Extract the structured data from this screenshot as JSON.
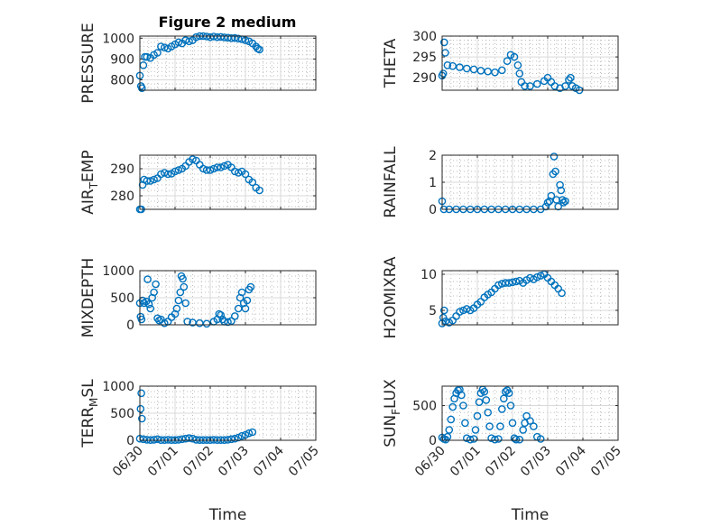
{
  "figure": {
    "title": "Figure 2 medium"
  },
  "chart_data": [
    {
      "type": "scatter",
      "name": "PRESSURE",
      "ylabel": "PRESSURE",
      "xlabel": "",
      "title": "Figure 2 medium",
      "ylim": [
        750,
        1010
      ],
      "yticks": [
        800,
        900,
        1000
      ],
      "ytick_labels": [
        "800",
        "900",
        "1000"
      ],
      "xlim": [
        0,
        5
      ],
      "xticks": [
        0,
        1,
        2,
        3,
        4,
        5
      ],
      "xtick_labels": [],
      "grid": true,
      "minor_grid": true,
      "points": [
        [
          0.0,
          820
        ],
        [
          0.03,
          770
        ],
        [
          0.06,
          760
        ],
        [
          0.1,
          870
        ],
        [
          0.14,
          910
        ],
        [
          0.2,
          910
        ],
        [
          0.3,
          905
        ],
        [
          0.4,
          920
        ],
        [
          0.5,
          930
        ],
        [
          0.6,
          960
        ],
        [
          0.7,
          955
        ],
        [
          0.8,
          950
        ],
        [
          0.9,
          960
        ],
        [
          1.0,
          970
        ],
        [
          1.1,
          980
        ],
        [
          1.2,
          975
        ],
        [
          1.3,
          990
        ],
        [
          1.4,
          985
        ],
        [
          1.5,
          990
        ],
        [
          1.6,
          1005
        ],
        [
          1.7,
          1010
        ],
        [
          1.8,
          1010
        ],
        [
          1.9,
          1008
        ],
        [
          2.0,
          1005
        ],
        [
          2.1,
          1008
        ],
        [
          2.2,
          1005
        ],
        [
          2.3,
          1006
        ],
        [
          2.4,
          1004
        ],
        [
          2.5,
          1002
        ],
        [
          2.6,
          1000
        ],
        [
          2.7,
          1001
        ],
        [
          2.8,
          998
        ],
        [
          2.9,
          995
        ],
        [
          3.0,
          990
        ],
        [
          3.1,
          985
        ],
        [
          3.2,
          975
        ],
        [
          3.3,
          960
        ],
        [
          3.35,
          950
        ],
        [
          3.4,
          945
        ]
      ]
    },
    {
      "type": "scatter",
      "name": "THETA",
      "ylabel": "THETA",
      "xlabel": "",
      "ylim": [
        287,
        300
      ],
      "yticks": [
        290,
        295,
        300
      ],
      "ytick_labels": [
        "290",
        "295",
        "300"
      ],
      "xlim": [
        0,
        5
      ],
      "xticks": [
        0,
        1,
        2,
        3,
        4,
        5
      ],
      "xtick_labels": [],
      "grid": true,
      "minor_grid": true,
      "points": [
        [
          0.0,
          290.5
        ],
        [
          0.03,
          291
        ],
        [
          0.06,
          298.5
        ],
        [
          0.09,
          296
        ],
        [
          0.15,
          293
        ],
        [
          0.3,
          292.8
        ],
        [
          0.5,
          292.5
        ],
        [
          0.7,
          292.2
        ],
        [
          0.9,
          292
        ],
        [
          1.1,
          291.7
        ],
        [
          1.3,
          291.5
        ],
        [
          1.5,
          291.3
        ],
        [
          1.7,
          291.8
        ],
        [
          1.85,
          294
        ],
        [
          1.95,
          295.5
        ],
        [
          2.05,
          295
        ],
        [
          2.15,
          293
        ],
        [
          2.2,
          291
        ],
        [
          2.25,
          289
        ],
        [
          2.35,
          288
        ],
        [
          2.5,
          288
        ],
        [
          2.7,
          288.5
        ],
        [
          2.9,
          289.2
        ],
        [
          3.0,
          290
        ],
        [
          3.1,
          289
        ],
        [
          3.2,
          288
        ],
        [
          3.35,
          287.5
        ],
        [
          3.5,
          288
        ],
        [
          3.6,
          289.5
        ],
        [
          3.65,
          290
        ],
        [
          3.7,
          288
        ],
        [
          3.8,
          287.5
        ],
        [
          3.9,
          287
        ]
      ]
    },
    {
      "type": "scatter",
      "name": "AIR_TEMP",
      "ylabel": "AIR_TEMP",
      "xlabel": "",
      "ylim": [
        275,
        295
      ],
      "yticks": [
        280,
        290
      ],
      "ytick_labels": [
        "280",
        "290"
      ],
      "xlim": [
        0,
        5
      ],
      "xticks": [
        0,
        1,
        2,
        3,
        4,
        5
      ],
      "xtick_labels": [],
      "grid": true,
      "minor_grid": true,
      "points": [
        [
          0.0,
          275
        ],
        [
          0.04,
          275
        ],
        [
          0.08,
          284
        ],
        [
          0.12,
          286
        ],
        [
          0.2,
          285.5
        ],
        [
          0.3,
          285.5
        ],
        [
          0.4,
          286
        ],
        [
          0.5,
          286.5
        ],
        [
          0.6,
          288
        ],
        [
          0.7,
          288.5
        ],
        [
          0.8,
          288
        ],
        [
          0.9,
          288.2
        ],
        [
          1.0,
          289
        ],
        [
          1.1,
          289.5
        ],
        [
          1.2,
          290
        ],
        [
          1.3,
          291
        ],
        [
          1.4,
          292.5
        ],
        [
          1.5,
          293.5
        ],
        [
          1.6,
          293
        ],
        [
          1.7,
          291.5
        ],
        [
          1.8,
          290
        ],
        [
          1.9,
          289.5
        ],
        [
          2.0,
          289.5
        ],
        [
          2.1,
          290
        ],
        [
          2.2,
          290.5
        ],
        [
          2.3,
          290.5
        ],
        [
          2.4,
          291
        ],
        [
          2.5,
          291.5
        ],
        [
          2.6,
          290.5
        ],
        [
          2.7,
          289
        ],
        [
          2.8,
          288.5
        ],
        [
          2.9,
          289
        ],
        [
          3.0,
          288
        ],
        [
          3.1,
          286
        ],
        [
          3.2,
          285
        ],
        [
          3.3,
          283
        ],
        [
          3.4,
          282
        ]
      ]
    },
    {
      "type": "scatter",
      "name": "RAINFALL",
      "ylabel": "RAINFALL",
      "xlabel": "",
      "ylim": [
        0,
        2
      ],
      "yticks": [
        0,
        1,
        2
      ],
      "ytick_labels": [
        "0",
        "1",
        "2"
      ],
      "xlim": [
        0,
        5
      ],
      "xticks": [
        0,
        1,
        2,
        3,
        4,
        5
      ],
      "xtick_labels": [],
      "grid": true,
      "minor_grid": true,
      "points": [
        [
          0.0,
          0.3
        ],
        [
          0.05,
          0
        ],
        [
          0.2,
          0
        ],
        [
          0.4,
          0
        ],
        [
          0.6,
          0
        ],
        [
          0.8,
          0
        ],
        [
          1.0,
          0
        ],
        [
          1.2,
          0
        ],
        [
          1.4,
          0
        ],
        [
          1.6,
          0
        ],
        [
          1.8,
          0
        ],
        [
          2.0,
          0
        ],
        [
          2.2,
          0
        ],
        [
          2.4,
          0
        ],
        [
          2.6,
          0
        ],
        [
          2.8,
          0
        ],
        [
          2.95,
          0.1
        ],
        [
          3.0,
          0.25
        ],
        [
          3.05,
          0.3
        ],
        [
          3.1,
          0.5
        ],
        [
          3.15,
          1.3
        ],
        [
          3.18,
          1.95
        ],
        [
          3.22,
          1.4
        ],
        [
          3.25,
          0.35
        ],
        [
          3.3,
          0.1
        ],
        [
          3.35,
          0.9
        ],
        [
          3.38,
          0.7
        ],
        [
          3.42,
          0.35
        ],
        [
          3.45,
          0.25
        ],
        [
          3.5,
          0.3
        ]
      ]
    },
    {
      "type": "scatter",
      "name": "MIXDEPTH",
      "ylabel": "MIXDEPTH",
      "xlabel": "",
      "ylim": [
        0,
        1000
      ],
      "yticks": [
        0,
        500,
        1000
      ],
      "ytick_labels": [
        "0",
        "500",
        "1000"
      ],
      "xlim": [
        0,
        5
      ],
      "xticks": [
        0,
        1,
        2,
        3,
        4,
        5
      ],
      "xtick_labels": [],
      "grid": true,
      "minor_grid": true,
      "points": [
        [
          0.0,
          400
        ],
        [
          0.02,
          150
        ],
        [
          0.05,
          100
        ],
        [
          0.08,
          450
        ],
        [
          0.12,
          400
        ],
        [
          0.18,
          430
        ],
        [
          0.22,
          840
        ],
        [
          0.26,
          380
        ],
        [
          0.3,
          300
        ],
        [
          0.35,
          500
        ],
        [
          0.4,
          600
        ],
        [
          0.45,
          750
        ],
        [
          0.5,
          120
        ],
        [
          0.55,
          80
        ],
        [
          0.6,
          100
        ],
        [
          0.7,
          30
        ],
        [
          0.8,
          60
        ],
        [
          0.9,
          140
        ],
        [
          1.0,
          200
        ],
        [
          1.05,
          300
        ],
        [
          1.1,
          450
        ],
        [
          1.15,
          600
        ],
        [
          1.18,
          900
        ],
        [
          1.22,
          850
        ],
        [
          1.25,
          700
        ],
        [
          1.3,
          400
        ],
        [
          1.35,
          60
        ],
        [
          1.5,
          40
        ],
        [
          1.7,
          30
        ],
        [
          1.9,
          20
        ],
        [
          2.1,
          60
        ],
        [
          2.2,
          100
        ],
        [
          2.25,
          200
        ],
        [
          2.3,
          180
        ],
        [
          2.35,
          100
        ],
        [
          2.4,
          60
        ],
        [
          2.5,
          50
        ],
        [
          2.6,
          70
        ],
        [
          2.7,
          160
        ],
        [
          2.8,
          300
        ],
        [
          2.85,
          500
        ],
        [
          2.9,
          600
        ],
        [
          2.95,
          400
        ],
        [
          3.0,
          300
        ],
        [
          3.05,
          450
        ],
        [
          3.1,
          650
        ],
        [
          3.15,
          700
        ]
      ]
    },
    {
      "type": "scatter",
      "name": "H2OMIXRA",
      "ylabel": "H2OMIXRA",
      "xlabel": "",
      "ylim": [
        3,
        10.5
      ],
      "yticks": [
        5,
        10
      ],
      "ytick_labels": [
        "5",
        "10"
      ],
      "xlim": [
        0,
        5
      ],
      "xticks": [
        0,
        1,
        2,
        3,
        4,
        5
      ],
      "xtick_labels": [],
      "grid": true,
      "minor_grid": true,
      "points": [
        [
          0.0,
          3.2
        ],
        [
          0.03,
          4.0
        ],
        [
          0.06,
          5.0
        ],
        [
          0.1,
          3.5
        ],
        [
          0.2,
          3.3
        ],
        [
          0.3,
          3.6
        ],
        [
          0.4,
          4.2
        ],
        [
          0.5,
          4.8
        ],
        [
          0.6,
          5.0
        ],
        [
          0.7,
          5.2
        ],
        [
          0.8,
          5.0
        ],
        [
          0.9,
          5.3
        ],
        [
          1.0,
          5.8
        ],
        [
          1.1,
          6.2
        ],
        [
          1.2,
          6.8
        ],
        [
          1.3,
          7.2
        ],
        [
          1.4,
          7.5
        ],
        [
          1.5,
          8.0
        ],
        [
          1.6,
          8.5
        ],
        [
          1.7,
          8.7
        ],
        [
          1.8,
          8.8
        ],
        [
          1.9,
          8.8
        ],
        [
          2.0,
          8.9
        ],
        [
          2.1,
          9.0
        ],
        [
          2.2,
          9.1
        ],
        [
          2.3,
          8.8
        ],
        [
          2.4,
          9.2
        ],
        [
          2.5,
          9.5
        ],
        [
          2.6,
          9.3
        ],
        [
          2.7,
          9.6
        ],
        [
          2.8,
          9.8
        ],
        [
          2.9,
          10.0
        ],
        [
          3.0,
          9.5
        ],
        [
          3.1,
          9.0
        ],
        [
          3.2,
          8.5
        ],
        [
          3.3,
          8.0
        ],
        [
          3.4,
          7.4
        ]
      ]
    },
    {
      "type": "scatter",
      "name": "TERR_MSL",
      "ylabel": "TERR_MSL",
      "xlabel": "Time",
      "ylim": [
        0,
        1000
      ],
      "yticks": [
        0,
        500,
        1000
      ],
      "ytick_labels": [
        "0",
        "500",
        "1000"
      ],
      "xlim": [
        0,
        5
      ],
      "xticks": [
        0,
        1,
        2,
        3,
        4,
        5
      ],
      "xtick_labels": [
        "06/30",
        "07/01",
        "07/02",
        "07/03",
        "07/04",
        "07/05"
      ],
      "grid": true,
      "minor_grid": true,
      "points": [
        [
          0.0,
          30
        ],
        [
          0.02,
          580
        ],
        [
          0.04,
          870
        ],
        [
          0.06,
          400
        ],
        [
          0.1,
          20
        ],
        [
          0.2,
          10
        ],
        [
          0.3,
          5
        ],
        [
          0.4,
          10
        ],
        [
          0.5,
          20
        ],
        [
          0.6,
          5
        ],
        [
          0.7,
          5
        ],
        [
          0.8,
          10
        ],
        [
          0.9,
          5
        ],
        [
          1.0,
          5
        ],
        [
          1.1,
          10
        ],
        [
          1.2,
          20
        ],
        [
          1.3,
          30
        ],
        [
          1.4,
          40
        ],
        [
          1.5,
          30
        ],
        [
          1.6,
          10
        ],
        [
          1.7,
          5
        ],
        [
          1.8,
          5
        ],
        [
          1.9,
          5
        ],
        [
          2.0,
          5
        ],
        [
          2.1,
          10
        ],
        [
          2.2,
          5
        ],
        [
          2.3,
          5
        ],
        [
          2.4,
          5
        ],
        [
          2.5,
          10
        ],
        [
          2.6,
          20
        ],
        [
          2.7,
          30
        ],
        [
          2.8,
          50
        ],
        [
          2.9,
          80
        ],
        [
          3.0,
          100
        ],
        [
          3.1,
          130
        ],
        [
          3.2,
          150
        ]
      ]
    },
    {
      "type": "scatter",
      "name": "SUN_FLUX",
      "ylabel": "SUN_FLUX",
      "xlabel": "Time",
      "ylim": [
        0,
        780
      ],
      "yticks": [
        0,
        500
      ],
      "ytick_labels": [
        "0",
        "500"
      ],
      "xlim": [
        0,
        5
      ],
      "xticks": [
        0,
        1,
        2,
        3,
        4,
        5
      ],
      "xtick_labels": [
        "06/30",
        "07/01",
        "07/02",
        "07/03",
        "07/04",
        "07/05"
      ],
      "grid": true,
      "minor_grid": true,
      "points": [
        [
          0.0,
          40
        ],
        [
          0.05,
          20
        ],
        [
          0.1,
          10
        ],
        [
          0.15,
          50
        ],
        [
          0.2,
          150
        ],
        [
          0.25,
          300
        ],
        [
          0.3,
          480
        ],
        [
          0.35,
          600
        ],
        [
          0.4,
          680
        ],
        [
          0.45,
          720
        ],
        [
          0.5,
          730
        ],
        [
          0.55,
          650
        ],
        [
          0.6,
          500
        ],
        [
          0.65,
          250
        ],
        [
          0.7,
          30
        ],
        [
          0.8,
          10
        ],
        [
          0.9,
          20
        ],
        [
          0.95,
          150
        ],
        [
          1.0,
          350
        ],
        [
          1.05,
          550
        ],
        [
          1.1,
          680
        ],
        [
          1.15,
          730
        ],
        [
          1.2,
          700
        ],
        [
          1.25,
          580
        ],
        [
          1.3,
          400
        ],
        [
          1.35,
          200
        ],
        [
          1.4,
          30
        ],
        [
          1.5,
          10
        ],
        [
          1.6,
          20
        ],
        [
          1.65,
          200
        ],
        [
          1.7,
          450
        ],
        [
          1.75,
          600
        ],
        [
          1.8,
          700
        ],
        [
          1.85,
          720
        ],
        [
          1.9,
          680
        ],
        [
          1.95,
          500
        ],
        [
          2.0,
          250
        ],
        [
          2.05,
          30
        ],
        [
          2.1,
          10
        ],
        [
          2.2,
          10
        ],
        [
          2.3,
          150
        ],
        [
          2.35,
          250
        ],
        [
          2.4,
          350
        ],
        [
          2.5,
          280
        ],
        [
          2.6,
          200
        ],
        [
          2.7,
          50
        ],
        [
          2.8,
          20
        ]
      ]
    }
  ]
}
